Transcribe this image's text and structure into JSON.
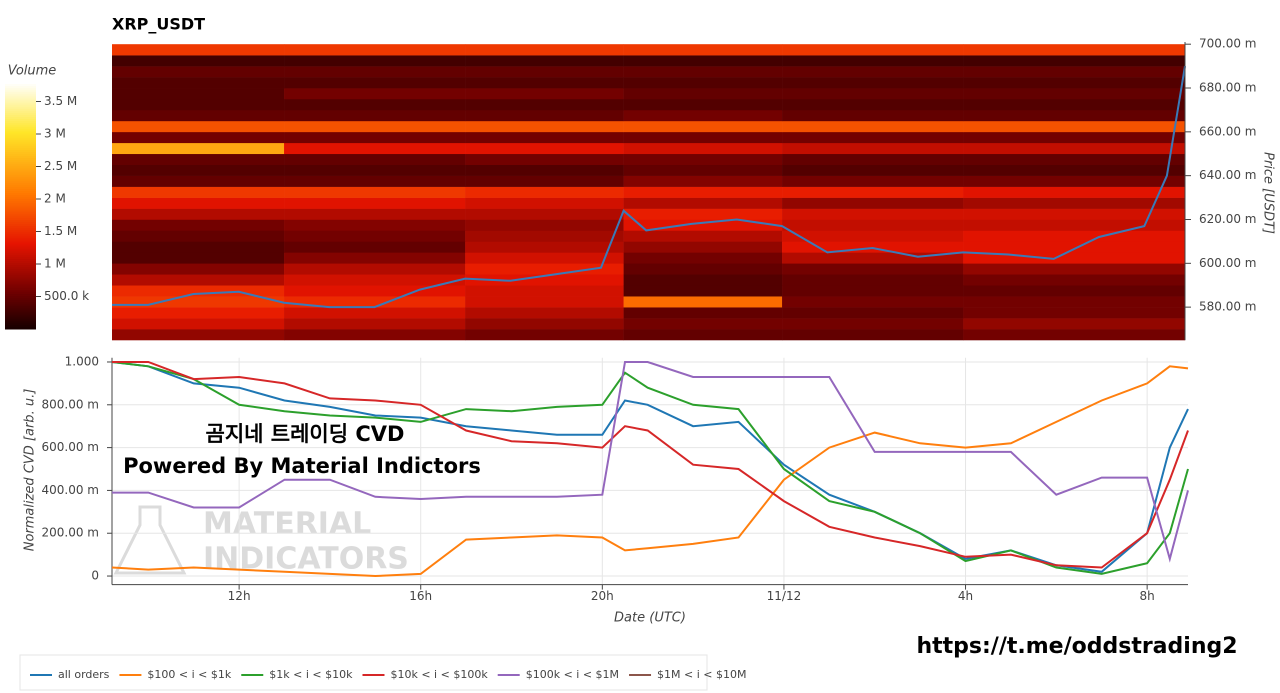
{
  "chart_data": [
    {
      "type": "heatmap",
      "title": "XRP_USDT",
      "colorbar_label": "Volume",
      "y_label": "Price [USDT]",
      "clim": [
        0,
        3800000
      ],
      "colorbar_ticks": [
        {
          "value": 500000,
          "label": "500.0 k"
        },
        {
          "value": 1000000,
          "label": "1 M"
        },
        {
          "value": 1500000,
          "label": "1.5 M"
        },
        {
          "value": 2000000,
          "label": "2 M"
        },
        {
          "value": 2500000,
          "label": "2.5 M"
        },
        {
          "value": 3000000,
          "label": "3 M"
        },
        {
          "value": 3500000,
          "label": "3.5 M"
        }
      ],
      "xlim": [
        9.2,
        32.9
      ],
      "ylim": [
        0.565,
        0.701
      ],
      "yticks": [
        {
          "value": 0.58,
          "label": "580.00 m"
        },
        {
          "value": 0.6,
          "label": "600.00 m"
        },
        {
          "value": 0.62,
          "label": "620.00 m"
        },
        {
          "value": 0.64,
          "label": "640.00 m"
        },
        {
          "value": 0.66,
          "label": "660.00 m"
        },
        {
          "value": 0.68,
          "label": "680.00 m"
        },
        {
          "value": 0.7,
          "label": "700.00 m"
        }
      ],
      "heatmap": {
        "time_edges": [
          9.2,
          13,
          17,
          20.5,
          24,
          28,
          32.9
        ],
        "price_edges": [
          0.565,
          0.57,
          0.575,
          0.58,
          0.585,
          0.59,
          0.595,
          0.6,
          0.605,
          0.61,
          0.615,
          0.62,
          0.625,
          0.63,
          0.635,
          0.64,
          0.645,
          0.65,
          0.655,
          0.66,
          0.665,
          0.67,
          0.675,
          0.68,
          0.685,
          0.69,
          0.695,
          0.7
        ],
        "values": [
          [
            800000,
            700000,
            600000,
            500000,
            500000,
            600000
          ],
          [
            1200000,
            1000000,
            800000,
            600000,
            600000,
            800000
          ],
          [
            1400000,
            1200000,
            1000000,
            500000,
            500000,
            600000
          ],
          [
            1600000,
            1500000,
            1200000,
            2000000,
            600000,
            600000
          ],
          [
            1500000,
            1300000,
            1200000,
            400000,
            500000,
            500000
          ],
          [
            1000000,
            1200000,
            1300000,
            400000,
            500000,
            600000
          ],
          [
            700000,
            1000000,
            1400000,
            500000,
            600000,
            800000
          ],
          [
            400000,
            700000,
            1200000,
            600000,
            1000000,
            1300000
          ],
          [
            400000,
            500000,
            1000000,
            800000,
            1300000,
            1300000
          ],
          [
            500000,
            600000,
            900000,
            1000000,
            1200000,
            1300000
          ],
          [
            600000,
            700000,
            800000,
            1300000,
            1100000,
            1100000
          ],
          [
            1000000,
            1000000,
            1000000,
            1400000,
            1200000,
            1200000
          ],
          [
            1300000,
            1300000,
            1200000,
            1000000,
            800000,
            900000
          ],
          [
            1600000,
            1600000,
            1500000,
            1400000,
            1400000,
            1300000
          ],
          [
            500000,
            500000,
            500000,
            700000,
            600000,
            600000
          ],
          [
            400000,
            400000,
            400000,
            500000,
            400000,
            400000
          ],
          [
            500000,
            500000,
            600000,
            600000,
            500000,
            500000
          ],
          [
            2500000,
            1300000,
            1300000,
            1200000,
            1100000,
            1100000
          ],
          [
            600000,
            600000,
            600000,
            600000,
            600000,
            600000
          ],
          [
            1800000,
            1800000,
            1800000,
            1800000,
            1800000,
            1800000
          ],
          [
            500000,
            500000,
            500000,
            600000,
            500000,
            500000
          ],
          [
            400000,
            400000,
            400000,
            400000,
            400000,
            400000
          ],
          [
            400000,
            600000,
            600000,
            500000,
            500000,
            500000
          ],
          [
            400000,
            400000,
            400000,
            400000,
            400000,
            400000
          ],
          [
            500000,
            500000,
            500000,
            500000,
            500000,
            500000
          ],
          [
            300000,
            300000,
            300000,
            300000,
            300000,
            300000
          ],
          [
            1600000,
            1600000,
            1600000,
            1600000,
            1600000,
            1600000
          ]
        ]
      },
      "x": [
        9.2,
        10,
        11,
        12,
        13,
        14,
        15,
        16,
        17,
        18,
        19,
        20,
        20.5,
        21,
        22,
        23,
        24,
        25,
        26,
        27,
        28,
        29,
        30,
        31,
        32,
        32.5,
        32.9
      ],
      "price": {
        "color": "#3a7ab8",
        "values": [
          0.581,
          0.581,
          0.586,
          0.587,
          0.582,
          0.58,
          0.58,
          0.588,
          0.593,
          0.592,
          0.595,
          0.598,
          0.624,
          0.615,
          0.618,
          0.62,
          0.617,
          0.605,
          0.607,
          0.603,
          0.605,
          0.604,
          0.602,
          0.612,
          0.617,
          0.64,
          0.69
        ]
      }
    },
    {
      "type": "line",
      "y_label": "Normalized CVD [arb. u.]",
      "x_label": "Date (UTC)",
      "grid": true,
      "legend": "bottom",
      "xlim": [
        9.2,
        32.9
      ],
      "ylim": [
        -0.04,
        1.02
      ],
      "xticks": [
        {
          "value": 12,
          "label": "12h"
        },
        {
          "value": 16,
          "label": "16h"
        },
        {
          "value": 20,
          "label": "20h"
        },
        {
          "value": 24,
          "label": "11/12"
        },
        {
          "value": 28,
          "label": "4h"
        },
        {
          "value": 32,
          "label": "8h"
        }
      ],
      "yticks": [
        0,
        {
          "value": 0.2,
          "label": "200.00 m"
        },
        {
          "value": 0.4,
          "label": "400.00 m"
        },
        {
          "value": 0.6,
          "label": "600.00 m"
        },
        {
          "value": 0.8,
          "label": "800.00 m"
        },
        {
          "value": 1,
          "label": "1.000"
        }
      ],
      "x": [
        9.2,
        10,
        11,
        12,
        13,
        14,
        15,
        16,
        17,
        18,
        19,
        20,
        20.5,
        21,
        22,
        23,
        24,
        25,
        26,
        27,
        28,
        29,
        30,
        31,
        32,
        32.5,
        32.9
      ],
      "series": [
        {
          "name": "all orders",
          "color": "#1f77b4",
          "values": [
            1.0,
            0.98,
            0.9,
            0.88,
            0.82,
            0.79,
            0.75,
            0.74,
            0.7,
            0.68,
            0.66,
            0.66,
            0.82,
            0.8,
            0.7,
            0.72,
            0.52,
            0.38,
            0.3,
            0.2,
            0.08,
            0.12,
            0.05,
            0.02,
            0.2,
            0.6,
            0.78
          ]
        },
        {
          "name": "$100 < i < $1k",
          "color": "#ff7f0e",
          "values": [
            0.04,
            0.03,
            0.04,
            0.03,
            0.02,
            0.01,
            0.0,
            0.01,
            0.17,
            0.18,
            0.19,
            0.18,
            0.12,
            0.13,
            0.15,
            0.18,
            0.45,
            0.6,
            0.67,
            0.62,
            0.6,
            0.62,
            0.72,
            0.82,
            0.9,
            0.98,
            0.97
          ]
        },
        {
          "name": "$1k < i < $10k",
          "color": "#2ca02c",
          "values": [
            1.0,
            0.98,
            0.92,
            0.8,
            0.77,
            0.75,
            0.74,
            0.72,
            0.78,
            0.77,
            0.79,
            0.8,
            0.95,
            0.88,
            0.8,
            0.78,
            0.5,
            0.35,
            0.3,
            0.2,
            0.07,
            0.12,
            0.04,
            0.01,
            0.06,
            0.2,
            0.5
          ]
        },
        {
          "name": "$10k < i < $100k",
          "color": "#d62728",
          "values": [
            1.0,
            1.0,
            0.92,
            0.93,
            0.9,
            0.83,
            0.82,
            0.8,
            0.68,
            0.63,
            0.62,
            0.6,
            0.7,
            0.68,
            0.52,
            0.5,
            0.35,
            0.23,
            0.18,
            0.14,
            0.09,
            0.1,
            0.05,
            0.04,
            0.2,
            0.45,
            0.68
          ]
        },
        {
          "name": "$100k < i < $1M",
          "color": "#9467bd",
          "values": [
            0.39,
            0.39,
            0.32,
            0.32,
            0.45,
            0.45,
            0.37,
            0.36,
            0.37,
            0.37,
            0.37,
            0.38,
            1.0,
            1.0,
            0.93,
            0.93,
            0.93,
            0.93,
            0.58,
            0.58,
            0.58,
            0.58,
            0.38,
            0.46,
            0.46,
            0.08,
            0.4
          ]
        },
        {
          "name": "$1M < i < $10M",
          "color": "#8c564b",
          "values": [
            null,
            null,
            null,
            null,
            null,
            null,
            null,
            null,
            null,
            null,
            null,
            null,
            null,
            null,
            null,
            null,
            null,
            null,
            null,
            null,
            null,
            null,
            null,
            null,
            null,
            null,
            null
          ]
        }
      ]
    }
  ],
  "overlay": {
    "watermark_title": "곰지네 트레이딩 CVD",
    "watermark_subtitle": "Powered By Material Indictors",
    "logo_line1": "MATERIAL",
    "logo_line2": "INDICATORS",
    "link": "https://t.me/oddstrading2"
  }
}
